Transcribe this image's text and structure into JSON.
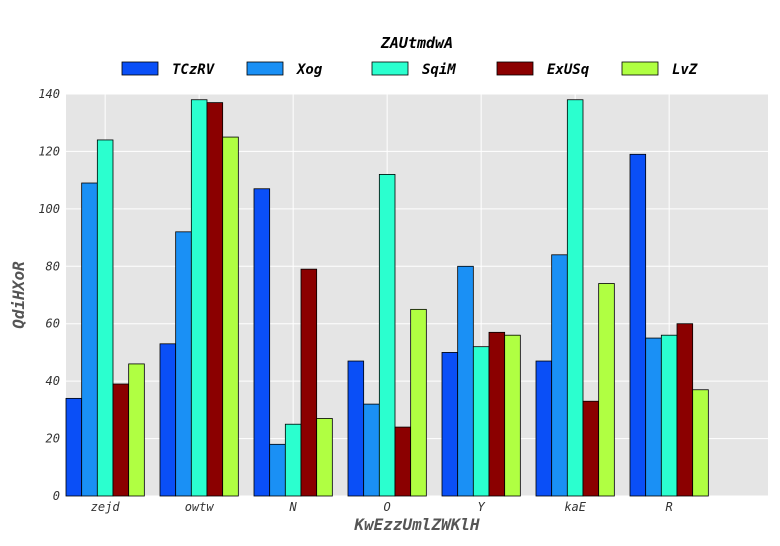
{
  "chart_data": {
    "type": "bar",
    "legend_title": "ZAUtmdwA",
    "legend_position": "top-center",
    "xlabel": "KwEzzUmlZWKlH",
    "ylabel": "QdiHXoR",
    "ylim": [
      0,
      140
    ],
    "yticks": [
      0,
      20,
      40,
      60,
      80,
      100,
      120,
      140
    ],
    "grid": true,
    "categories": [
      "zejd",
      "owtw",
      "N",
      "O",
      "Y",
      "kaE",
      "R"
    ],
    "series": [
      {
        "name": "TCzRV",
        "color": "#0a4ff7",
        "values": [
          34,
          53,
          107,
          47,
          50,
          47,
          119
        ]
      },
      {
        "name": "Xog",
        "color": "#1a90f5",
        "values": [
          109,
          92,
          18,
          32,
          80,
          84,
          55
        ]
      },
      {
        "name": "SqiM",
        "color": "#2bffcf",
        "values": [
          124,
          138,
          25,
          112,
          52,
          138,
          56
        ]
      },
      {
        "name": "ExUSq",
        "color": "#8b0000",
        "values": [
          39,
          137,
          79,
          24,
          57,
          33,
          60
        ]
      },
      {
        "name": "LvZ",
        "color": "#b0ff42",
        "values": [
          46,
          125,
          27,
          65,
          56,
          74,
          37
        ]
      }
    ]
  }
}
